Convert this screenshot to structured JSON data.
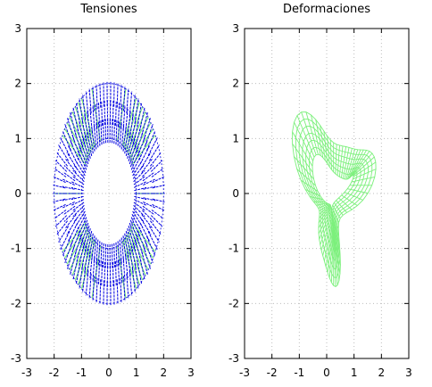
{
  "colors": {
    "stress": "#0000e0",
    "mesh": "#7cf07c",
    "grid": "#bdbdbd"
  },
  "chart_data": [
    {
      "type": "line",
      "title": "Tensiones",
      "xlim": [
        -3,
        3
      ],
      "ylim": [
        -3,
        3
      ],
      "xticks": [
        "-3",
        "-2",
        "-1",
        "0",
        "1",
        "2",
        "3"
      ],
      "yticks": [
        "-3",
        "-2",
        "-1",
        "0",
        "1",
        "2",
        "3"
      ],
      "grid": true,
      "ring": {
        "inner_radius_x": 1.0,
        "outer_radius_x": 2.0,
        "inner_radius_y": 1.0,
        "outer_radius_y": 2.0
      },
      "series": [
        {
          "values": "radial stress vectors over annulus",
          "color": "#0000e0"
        },
        {
          "values": "mesh segments",
          "color": "#7cf07c"
        }
      ]
    },
    {
      "type": "line",
      "title": "Deformaciones",
      "xlim": [
        -3,
        3
      ],
      "ylim": [
        -3,
        3
      ],
      "xticks": [
        "-3",
        "-2",
        "-1",
        "0",
        "1",
        "2",
        "3"
      ],
      "yticks": [
        "-3",
        "-2",
        "-1",
        "0",
        "1",
        "2",
        "3"
      ],
      "grid": true,
      "series": [
        {
          "values": "deformed annular mesh",
          "color": "#7cf07c"
        }
      ]
    }
  ]
}
